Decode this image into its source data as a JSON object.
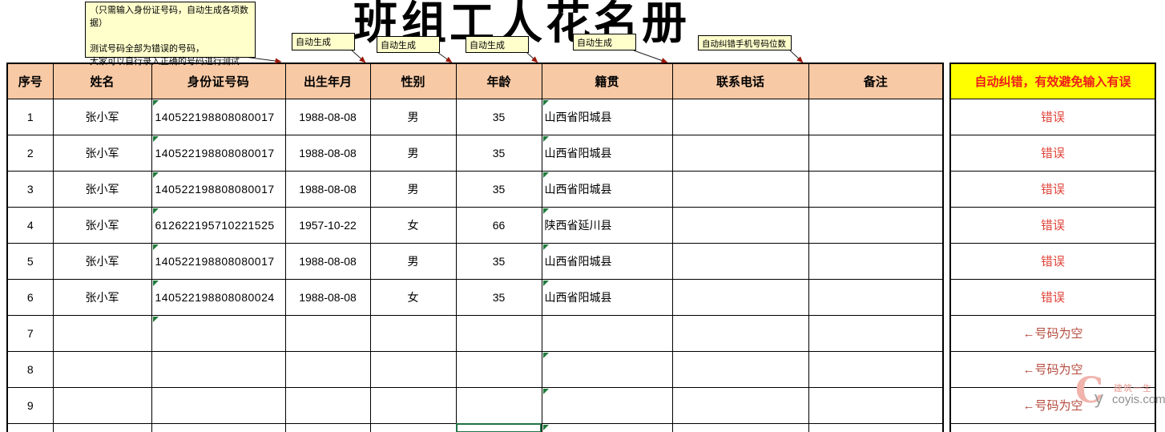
{
  "title": "班组工人花名册",
  "note_box": {
    "text": "（只需输入身份证号码，自动生成各项数据）\n\n测试号码全部为错误的号码，\n大家可以自行录入正确的号码进行测试."
  },
  "callouts": {
    "labels": [
      "自动生成",
      "自动生成",
      "自动生成",
      "自动生成",
      "自动纠错手机号码位数"
    ]
  },
  "table": {
    "headers": [
      "序号",
      "姓名",
      "身份证号码",
      "出生年月",
      "性别",
      "年龄",
      "籍贯",
      "联系电话",
      "备注"
    ],
    "rows": [
      {
        "no": "1",
        "name": "张小军",
        "id": "140522198808080017",
        "birth": "1988-08-08",
        "gender": "男",
        "age": "35",
        "origin": "山西省阳城县",
        "phone": "",
        "note": "",
        "id_mark": true,
        "origin_mark": true
      },
      {
        "no": "2",
        "name": "张小军",
        "id": "140522198808080017",
        "birth": "1988-08-08",
        "gender": "男",
        "age": "35",
        "origin": "山西省阳城县",
        "phone": "",
        "note": "",
        "id_mark": true,
        "origin_mark": true
      },
      {
        "no": "3",
        "name": "张小军",
        "id": "140522198808080017",
        "birth": "1988-08-08",
        "gender": "男",
        "age": "35",
        "origin": "山西省阳城县",
        "phone": "",
        "note": "",
        "id_mark": true,
        "origin_mark": true
      },
      {
        "no": "4",
        "name": "张小军",
        "id": "612622195710221525",
        "birth": "1957-10-22",
        "gender": "女",
        "age": "66",
        "origin": "陕西省延川县",
        "phone": "",
        "note": "",
        "id_mark": true,
        "origin_mark": true
      },
      {
        "no": "5",
        "name": "张小军",
        "id": "140522198808080017",
        "birth": "1988-08-08",
        "gender": "男",
        "age": "35",
        "origin": "山西省阳城县",
        "phone": "",
        "note": "",
        "id_mark": true,
        "origin_mark": true
      },
      {
        "no": "6",
        "name": "张小军",
        "id": "140522198808080024",
        "birth": "1988-08-08",
        "gender": "女",
        "age": "35",
        "origin": "山西省阳城县",
        "phone": "",
        "note": "",
        "id_mark": true,
        "origin_mark": true
      },
      {
        "no": "7",
        "name": "",
        "id": "",
        "birth": "",
        "gender": "",
        "age": "",
        "origin": "",
        "phone": "",
        "note": "",
        "id_mark": true,
        "origin_mark": false
      },
      {
        "no": "8",
        "name": "",
        "id": "",
        "birth": "",
        "gender": "",
        "age": "",
        "origin": "",
        "phone": "",
        "note": "",
        "id_mark": false,
        "origin_mark": true
      },
      {
        "no": "9",
        "name": "",
        "id": "",
        "birth": "",
        "gender": "",
        "age": "",
        "origin": "",
        "phone": "",
        "note": "",
        "id_mark": false,
        "origin_mark": true
      }
    ],
    "partial_row": {
      "selected_column": "age",
      "origin_mark": true
    }
  },
  "status_column": {
    "header": "自动纠错，有效避免输入有误",
    "values": [
      "错误",
      "错误",
      "错误",
      "错误",
      "错误",
      "错误",
      "←号码为空",
      "←号码为空",
      "←号码为空"
    ]
  },
  "watermark": {
    "logo_c": "C",
    "logo_y": "y",
    "name": "建筑一生",
    "site": "coyis.com"
  }
}
